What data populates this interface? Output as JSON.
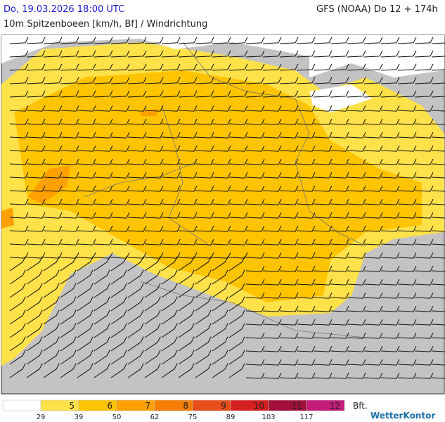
{
  "header": {
    "datetime": "Do, 19.03.2026 18:00 UTC",
    "model": "GFS (NOAA) Do 12 + 174h",
    "subtitle": "10m Spitzenboeen [km/h, Bf] / Windrichtung"
  },
  "legend": {
    "unit": "Bft.",
    "classes": [
      {
        "bft": null,
        "color": "#ffffff"
      },
      {
        "bft": 5,
        "color": "#ffe14a"
      },
      {
        "bft": 6,
        "color": "#ffc400"
      },
      {
        "bft": 7,
        "color": "#ffa000"
      },
      {
        "bft": 8,
        "color": "#f57d00"
      },
      {
        "bft": 9,
        "color": "#e84e1a"
      },
      {
        "bft": 10,
        "color": "#d4201f"
      },
      {
        "bft": 11,
        "color": "#a3103c"
      },
      {
        "bft": 12,
        "color": "#c41c78"
      }
    ],
    "kmh": [
      29,
      39,
      50,
      62,
      75,
      89,
      103,
      117
    ]
  },
  "brand": "WetterKontor"
}
